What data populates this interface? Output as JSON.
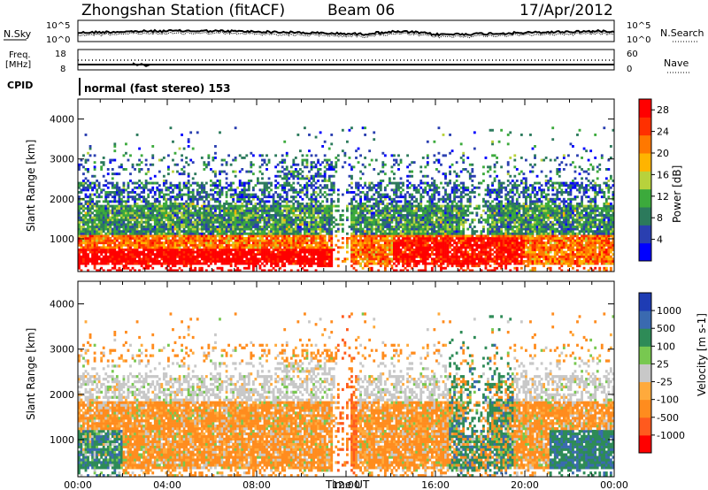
{
  "header": {
    "title": "Zhongshan Station (fitACF)",
    "beam": "Beam 06",
    "date": "17/Apr/2012"
  },
  "top_panels": {
    "sky_label": "N.Sky",
    "search_label": "N.Search",
    "sky_ticks": [
      "10^5",
      "10^0"
    ],
    "freq_label_1": "Freq.",
    "freq_label_2": "[MHz]",
    "freq_ticks": [
      "18",
      "8"
    ],
    "nave_label": "Nave",
    "nave_ticks": [
      "60",
      "0"
    ],
    "cpid_label": "CPID",
    "cpid_text": "normal (fast stereo) 153"
  },
  "colors": {
    "power_scale": [
      "#0000ff",
      "#2a3fb0",
      "#2c7a5c",
      "#3caa3c",
      "#b8d23c",
      "#ffb400",
      "#ff7800",
      "#ff3000",
      "#ff0000"
    ],
    "velocity_scale": [
      "#ff0000",
      "#ff5a1e",
      "#ff8c1e",
      "#ffaa3c",
      "#c8c8c8",
      "#78c850",
      "#2e8b57",
      "#3a6ab0",
      "#1e3cb4"
    ]
  },
  "chart_data": [
    {
      "type": "heatmap",
      "name": "power",
      "ylabel": "Slant Range [km]",
      "xlabel": "Time UT",
      "x_ticks": [
        "00:00",
        "04:00",
        "08:00",
        "12:00",
        "16:00",
        "20:00",
        "00:00"
      ],
      "y_ticks": [
        1000,
        2000,
        3000,
        4000
      ],
      "ylim": [
        180,
        4500
      ],
      "xlim_hours": [
        0,
        24
      ],
      "colorbar": {
        "label": "Power [dB]",
        "ticks": [
          "28",
          "24",
          "20",
          "16",
          "12",
          "8",
          "4"
        ],
        "range": [
          0,
          30
        ]
      }
    },
    {
      "type": "heatmap",
      "name": "velocity",
      "ylabel": "Slant Range [km]",
      "xlabel": "Time UT",
      "x_ticks": [
        "00:00",
        "04:00",
        "08:00",
        "12:00",
        "16:00",
        "20:00",
        "00:00"
      ],
      "y_ticks": [
        1000,
        2000,
        3000,
        4000
      ],
      "ylim": [
        180,
        4500
      ],
      "xlim_hours": [
        0,
        24
      ],
      "colorbar": {
        "label": "Velocity [m s-1]",
        "ticks": [
          "1000",
          "500",
          "100",
          "25",
          "-25",
          "-100",
          "-500",
          "-1000"
        ]
      }
    }
  ]
}
